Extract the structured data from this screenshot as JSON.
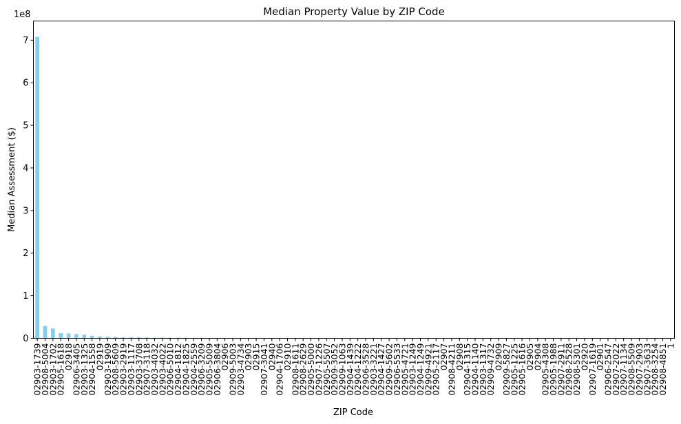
{
  "chart_data": {
    "type": "bar",
    "title": "Median Property Value by ZIP Code",
    "xlabel": "ZIP Code",
    "ylabel": "Median Assessment ($)",
    "y_offset_label": "1e8",
    "ylim": [
      0,
      7.45
    ],
    "yticks": [
      0,
      1,
      2,
      3,
      4,
      5,
      6,
      7
    ],
    "bar_color": "#87ceeb",
    "categories": [
      "02903-1739",
      "02908-5004",
      "02903-1702",
      "02905-1618",
      "02918",
      "02906-3405",
      "02903-1325",
      "02904-1558",
      "02919",
      "02903-1909",
      "02908-5609",
      "02903-2919",
      "02903-1117",
      "02903-3708",
      "02907-3118",
      "02903-4032",
      "02903-4022",
      "02906-5010",
      "02904-1812",
      "02904-1825",
      "02904-2559",
      "02906-3209",
      "02905-5009",
      "02906-3804",
      "02906",
      "02909-5003",
      "02903-4734",
      "02903",
      "02915",
      "02907-3041",
      "02940",
      "02904-1706",
      "02910",
      "02908-1611",
      "02908-2629",
      "02905-5000",
      "02907-1226",
      "02905-5507",
      "02909-3052",
      "02909-1063",
      "02904-1439",
      "02904-1222",
      "02906-3528",
      "02903-3221",
      "02904-1427",
      "02909-5602",
      "02906-5533",
      "02905-4721",
      "02903-1249",
      "02904-1249",
      "02909-4921",
      "02905-2117",
      "02907",
      "02908-4211",
      "02908",
      "02904-1315",
      "02904-1140",
      "02903-1317",
      "02909-4732",
      "02909",
      "02909-5827",
      "02905-1225",
      "02905-1616",
      "02905",
      "02904",
      "02905-4308",
      "02905-1988",
      "02907-2911",
      "02908-2528",
      "02908-5301",
      "02920",
      "02907-1619",
      "02901",
      "02906-2547",
      "02907-2022",
      "02907-1134",
      "02908-5509",
      "02907-2903",
      "02907-3633",
      "02908-3254",
      "02908-4851",
      "1"
    ],
    "values": [
      7.08,
      0.29,
      0.23,
      0.12,
      0.115,
      0.1,
      0.085,
      0.06,
      0.045,
      0.035,
      0.03,
      0.025,
      0.022,
      0.02,
      0.018,
      0.016,
      0.015,
      0.014,
      0.013,
      0.012,
      0.011,
      0.01,
      0.009,
      0.008,
      0.008,
      0.007,
      0.007,
      0.006,
      0.006,
      0.006,
      0.005,
      0.005,
      0.005,
      0.005,
      0.004,
      0.004,
      0.004,
      0.004,
      0.004,
      0.004,
      0.003,
      0.003,
      0.003,
      0.003,
      0.003,
      0.003,
      0.003,
      0.003,
      0.003,
      0.003,
      0.003,
      0.003,
      0.003,
      0.003,
      0.003,
      0.003,
      0.003,
      0.003,
      0.003,
      0.003,
      0.003,
      0.003,
      0.003,
      0.003,
      0.003,
      0.003,
      0.003,
      0.003,
      0.003,
      0.003,
      0.003,
      0.003,
      0.003,
      0.003,
      0.003,
      0.003,
      0.003,
      0.003,
      0.003,
      0.003,
      0.003,
      0.002
    ],
    "grid": false,
    "legend": "none"
  }
}
